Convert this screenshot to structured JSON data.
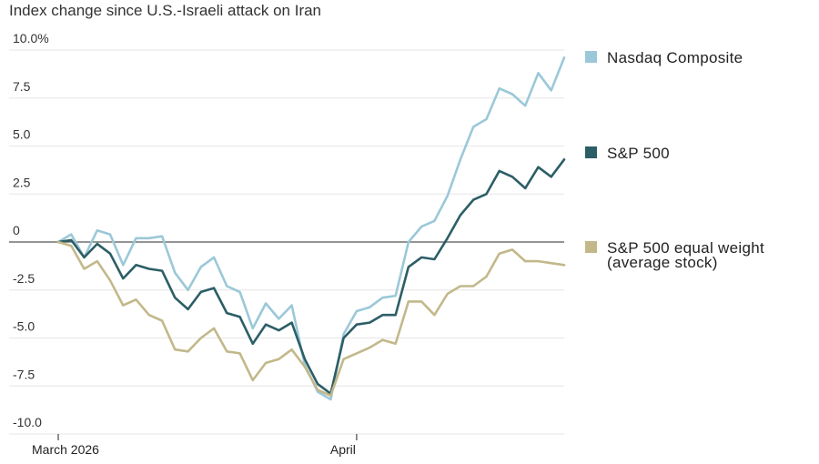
{
  "chart_data": {
    "type": "line",
    "title": "Index change since U.S.-Israeli attack on Iran",
    "ylim": [
      -10,
      10
    ],
    "yticks": [
      {
        "value": 10,
        "label": "10.0%"
      },
      {
        "value": 7.5,
        "label": "7.5"
      },
      {
        "value": 5,
        "label": "5.0"
      },
      {
        "value": 2.5,
        "label": "2.5"
      },
      {
        "value": 0,
        "label": "0"
      },
      {
        "value": -2.5,
        "label": "-2.5"
      },
      {
        "value": -5,
        "label": "-5.0"
      },
      {
        "value": -7.5,
        "label": "-7.5"
      },
      {
        "value": -10,
        "label": "-10.0"
      }
    ],
    "xticks": [
      {
        "index": 0,
        "label": "March 2026"
      },
      {
        "index": 23,
        "label": "April"
      }
    ],
    "n_points": 40,
    "series": [
      {
        "name": "Nasdaq Composite",
        "color": "#9bc8d8",
        "values": [
          0,
          0.4,
          -0.8,
          0.6,
          0.4,
          -1.2,
          0.2,
          0.2,
          0.3,
          -1.6,
          -2.5,
          -1.3,
          -0.8,
          -2.3,
          -2.6,
          -4.5,
          -3.2,
          -4.0,
          -3.3,
          -6.4,
          -7.8,
          -8.2,
          -4.8,
          -3.6,
          -3.4,
          -2.9,
          -2.8,
          0,
          0.8,
          1.1,
          2.4,
          4.3,
          6.0,
          6.4,
          8.0,
          7.7,
          7.1,
          8.8,
          7.9,
          9.6
        ]
      },
      {
        "name": "S&P 500",
        "color": "#2c5e66",
        "values": [
          0,
          0.1,
          -0.8,
          -0.1,
          -0.6,
          -1.9,
          -1.2,
          -1.4,
          -1.5,
          -2.9,
          -3.5,
          -2.6,
          -2.4,
          -3.7,
          -3.9,
          -5.3,
          -4.3,
          -4.6,
          -4.2,
          -6.1,
          -7.4,
          -7.9,
          -5.0,
          -4.3,
          -4.2,
          -3.8,
          -3.8,
          -1.3,
          -0.8,
          -0.9,
          0.2,
          1.4,
          2.2,
          2.5,
          3.7,
          3.4,
          2.8,
          3.9,
          3.4,
          4.3
        ]
      },
      {
        "name": "S&P 500 equal weight (average stock)",
        "label_lines": [
          "S&P 500 equal weight",
          "(average stock)"
        ],
        "color": "#c2b88a",
        "values": [
          0,
          -0.2,
          -1.4,
          -1.0,
          -2.0,
          -3.3,
          -3.0,
          -3.8,
          -4.1,
          -5.6,
          -5.7,
          -5.0,
          -4.5,
          -5.7,
          -5.8,
          -7.2,
          -6.3,
          -6.1,
          -5.6,
          -6.5,
          -7.7,
          -8.0,
          -6.1,
          -5.8,
          -5.5,
          -5.1,
          -5.3,
          -3.1,
          -3.1,
          -3.8,
          -2.7,
          -2.3,
          -2.3,
          -1.8,
          -0.6,
          -0.4,
          -1.0,
          -1.0,
          -1.1,
          -1.2
        ]
      }
    ]
  }
}
